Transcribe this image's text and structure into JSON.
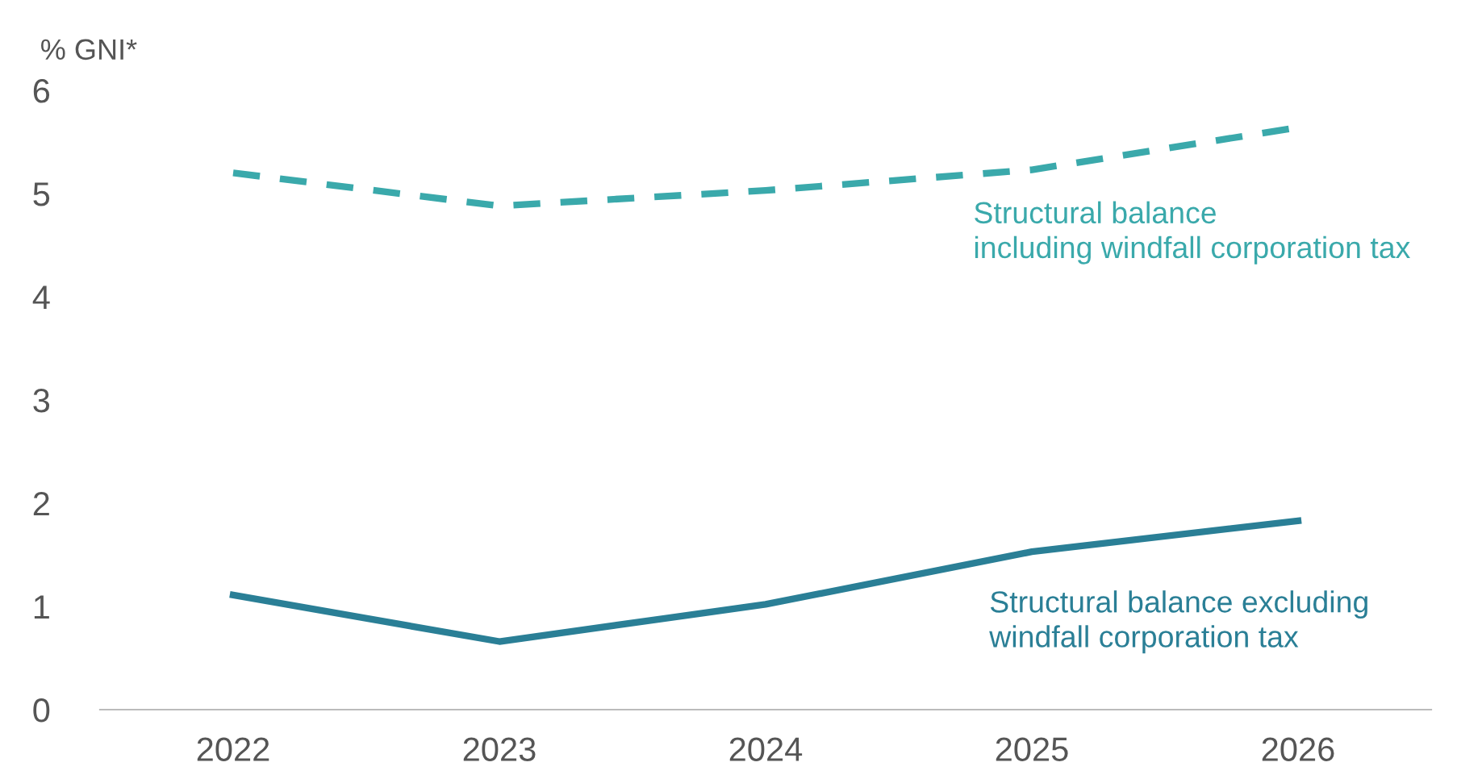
{
  "chart_data": {
    "type": "line",
    "ylabel": "% GNI*",
    "categories": [
      "2022",
      "2023",
      "2024",
      "2025",
      "2026"
    ],
    "series": [
      {
        "name": "Structural balance\nincluding windfall corporation tax",
        "color": "#3aa9ab",
        "line_style": "dashed",
        "values": [
          5.2,
          4.88,
          5.03,
          5.23,
          5.64
        ]
      },
      {
        "name": "Structural balance excluding\nwindfall corporation tax",
        "color": "#2a7f96",
        "line_style": "solid",
        "values": [
          1.11,
          0.66,
          1.02,
          1.53,
          1.83
        ]
      }
    ],
    "ylim": [
      0,
      6
    ],
    "yticks": [
      0,
      1,
      2,
      3,
      4,
      5,
      6
    ],
    "grid": false,
    "legend": false
  }
}
